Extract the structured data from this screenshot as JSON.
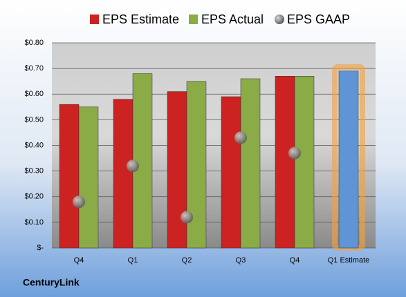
{
  "chart_data": {
    "type": "bar",
    "brand": "CenturyLink",
    "categories": [
      "Q4",
      "Q1",
      "Q2",
      "Q3",
      "Q4",
      "Q1 Estimate"
    ],
    "series": [
      {
        "name": "EPS Estimate",
        "color": "#cc2222",
        "values": [
          0.56,
          0.58,
          0.61,
          0.59,
          0.67,
          0.69
        ],
        "highlight_color": "#5f95d6"
      },
      {
        "name": "EPS Actual",
        "color": "#8aab45",
        "values": [
          0.55,
          0.68,
          0.65,
          0.66,
          0.67,
          null
        ]
      },
      {
        "name": "EPS GAAP",
        "color": "#8c8c8c",
        "marker": "circle",
        "values": [
          0.18,
          0.32,
          0.12,
          0.43,
          0.37,
          null
        ]
      }
    ],
    "ylim": [
      0,
      0.8
    ],
    "yticks": [
      {
        "value": 0,
        "label": "$-"
      },
      {
        "value": 0.1,
        "label": "$0.10"
      },
      {
        "value": 0.2,
        "label": "$0.20"
      },
      {
        "value": 0.3,
        "label": "$0.30"
      },
      {
        "value": 0.4,
        "label": "$0.40"
      },
      {
        "value": 0.5,
        "label": "$0.50"
      },
      {
        "value": 0.6,
        "label": "$0.60"
      },
      {
        "value": 0.7,
        "label": "$0.70"
      },
      {
        "value": 0.8,
        "label": "$0.80"
      }
    ],
    "grid": true
  }
}
